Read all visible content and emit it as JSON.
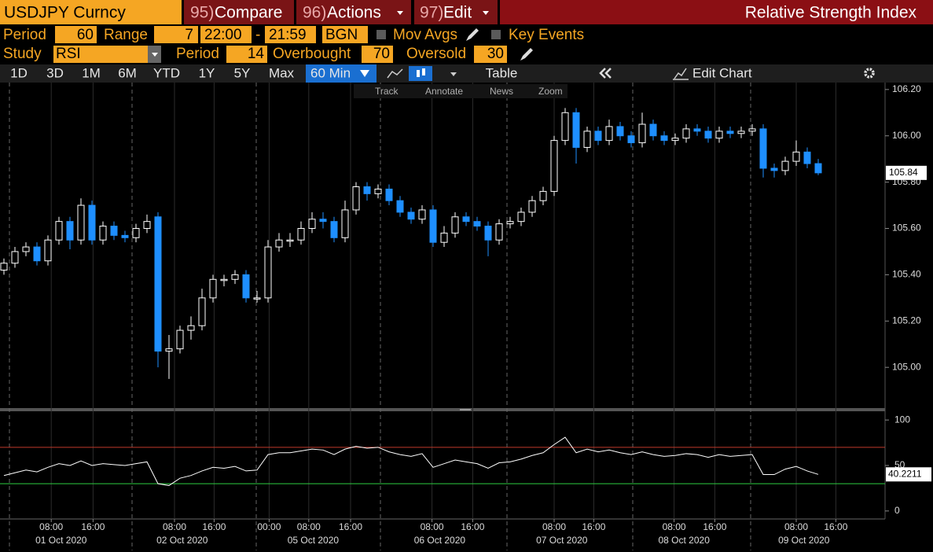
{
  "header": {
    "security": "USDJPY Curncy",
    "menus": [
      {
        "num": "95)",
        "label": "Compare"
      },
      {
        "num": "96)",
        "label": "Actions"
      },
      {
        "num": "97)",
        "label": "Edit"
      }
    ],
    "title": "Relative Strength Index"
  },
  "controls": {
    "period_label": "Period",
    "period": 60,
    "range_label": "Range",
    "range": 7,
    "start_time": "22:00",
    "range_sep": "-",
    "end_time": "21:59",
    "bgn": "BGN",
    "mov_avgs": "Mov Avgs",
    "key_events": "Key Events",
    "study_label": "Study",
    "study": "RSI",
    "study_period_label": "Period",
    "study_period": 14,
    "overbought_label": "Overbought",
    "overbought": 70,
    "oversold_label": "Oversold",
    "oversold": 30
  },
  "toolbar": {
    "timeframes": [
      "1D",
      "3D",
      "1M",
      "6M",
      "YTD",
      "1Y",
      "5Y",
      "Max"
    ],
    "interval": "60 Min",
    "table": "Table",
    "edit_chart": "Edit Chart"
  },
  "chart_tools": [
    "Track",
    "Annotate",
    "News",
    "Zoom"
  ],
  "chart_data": {
    "type": "candlestick",
    "up_color": "#ffffff",
    "down_color": "#1e8fff",
    "open": [
      105.42,
      105.45,
      105.5,
      105.52,
      105.46,
      105.55,
      105.63,
      105.55,
      105.7,
      105.55,
      105.61,
      105.57,
      105.56,
      105.6,
      105.65,
      105.07,
      105.08,
      105.16,
      105.18,
      105.3,
      105.38,
      105.38,
      105.4,
      105.3,
      105.3,
      105.52,
      105.55,
      105.55,
      105.6,
      105.64,
      105.63,
      105.56,
      105.68,
      105.78,
      105.75,
      105.77,
      105.72,
      105.67,
      105.64,
      105.68,
      105.54,
      105.58,
      105.65,
      105.63,
      105.61,
      105.55,
      105.62,
      105.63,
      105.67,
      105.72,
      105.76,
      105.98,
      106.1,
      105.95,
      106.02,
      105.98,
      106.04,
      106.0,
      105.97,
      106.05,
      106.0,
      105.98,
      105.99,
      106.03,
      106.02,
      105.99,
      106.02,
      106.01,
      106.02,
      106.03,
      105.86,
      105.85,
      105.89,
      105.93,
      105.88
    ],
    "high": [
      105.47,
      105.52,
      105.54,
      105.54,
      105.57,
      105.65,
      105.65,
      105.73,
      105.72,
      105.63,
      105.63,
      105.59,
      105.62,
      105.66,
      105.67,
      105.14,
      105.18,
      105.22,
      105.34,
      105.4,
      105.4,
      105.42,
      105.42,
      105.33,
      105.55,
      105.58,
      105.58,
      105.63,
      105.67,
      105.67,
      105.65,
      105.72,
      105.8,
      105.8,
      105.79,
      105.79,
      105.74,
      105.69,
      105.7,
      105.7,
      105.61,
      105.67,
      105.67,
      105.65,
      105.63,
      105.64,
      105.65,
      105.69,
      105.74,
      105.78,
      106.0,
      106.12,
      106.12,
      106.04,
      106.04,
      106.07,
      106.06,
      106.02,
      106.1,
      106.07,
      106.02,
      106.01,
      106.05,
      106.05,
      106.04,
      106.04,
      106.04,
      106.04,
      106.05,
      106.05,
      105.88,
      105.91,
      105.98,
      105.95,
      105.9
    ],
    "low": [
      105.4,
      105.43,
      105.48,
      105.44,
      105.44,
      105.53,
      105.51,
      105.53,
      105.53,
      105.53,
      105.55,
      105.54,
      105.54,
      105.58,
      105.0,
      104.95,
      105.06,
      105.12,
      105.16,
      105.28,
      105.35,
      105.36,
      105.28,
      105.28,
      105.28,
      105.5,
      105.52,
      105.53,
      105.58,
      105.6,
      105.54,
      105.54,
      105.66,
      105.72,
      105.73,
      105.7,
      105.65,
      105.62,
      105.62,
      105.52,
      105.52,
      105.56,
      105.61,
      105.59,
      105.48,
      105.53,
      105.6,
      105.61,
      105.65,
      105.7,
      105.74,
      105.96,
      105.88,
      105.93,
      105.96,
      105.96,
      105.98,
      105.95,
      105.95,
      105.98,
      105.96,
      105.96,
      105.97,
      106.0,
      105.97,
      105.97,
      105.99,
      105.99,
      106.0,
      105.82,
      105.82,
      105.83,
      105.87,
      105.86,
      105.83
    ],
    "close": [
      105.45,
      105.5,
      105.52,
      105.46,
      105.55,
      105.63,
      105.55,
      105.7,
      105.55,
      105.61,
      105.57,
      105.56,
      105.6,
      105.63,
      105.07,
      105.08,
      105.16,
      105.18,
      105.3,
      105.38,
      105.38,
      105.4,
      105.3,
      105.3,
      105.52,
      105.55,
      105.55,
      105.6,
      105.64,
      105.63,
      105.56,
      105.68,
      105.78,
      105.75,
      105.77,
      105.72,
      105.67,
      105.64,
      105.68,
      105.54,
      105.58,
      105.65,
      105.63,
      105.61,
      105.55,
      105.62,
      105.63,
      105.67,
      105.72,
      105.76,
      105.98,
      106.1,
      105.95,
      106.02,
      105.98,
      106.04,
      106.0,
      105.97,
      106.05,
      106.0,
      105.98,
      105.99,
      106.03,
      106.02,
      105.99,
      106.02,
      106.01,
      106.02,
      106.03,
      105.86,
      105.85,
      105.89,
      105.93,
      105.88,
      105.84
    ],
    "ylim": [
      104.824,
      106.23
    ],
    "yticks": [
      {
        "value": 105.0,
        "label": "105.00"
      },
      {
        "value": 105.2,
        "label": "105.20"
      },
      {
        "value": 105.4,
        "label": "105.40"
      },
      {
        "value": 105.6,
        "label": "105.60"
      },
      {
        "value": 105.8,
        "label": "105.80"
      },
      {
        "value": 106.0,
        "label": "106.00"
      },
      {
        "value": 106.2,
        "label": "106.20"
      }
    ],
    "xlim": [
      -0.36,
      80
    ],
    "xticks": [
      {
        "value": 4.3,
        "label": "08:00"
      },
      {
        "value": 8.1,
        "label": "16:00"
      },
      {
        "value": 15.5,
        "label": "08:00"
      },
      {
        "value": 19.1,
        "label": "16:00"
      },
      {
        "value": 24.1,
        "label": "00:00"
      },
      {
        "value": 27.7,
        "label": "08:00"
      },
      {
        "value": 31.5,
        "label": "16:00"
      },
      {
        "value": 38.9,
        "label": "08:00"
      },
      {
        "value": 42.6,
        "label": "16:00"
      },
      {
        "value": 50,
        "label": "08:00"
      },
      {
        "value": 53.6,
        "label": "16:00"
      },
      {
        "value": 60.9,
        "label": "08:00"
      },
      {
        "value": 64.6,
        "label": "16:00"
      },
      {
        "value": 72,
        "label": "08:00"
      },
      {
        "value": 75.6,
        "label": "16:00"
      }
    ],
    "day_labels": [
      {
        "value": 5.2,
        "label": "01 Oct 2020"
      },
      {
        "value": 16.2,
        "label": "02 Oct 2020"
      },
      {
        "value": 28.1,
        "label": "05 Oct 2020"
      },
      {
        "value": 39.6,
        "label": "06 Oct 2020"
      },
      {
        "value": 50.7,
        "label": "07 Oct 2020"
      },
      {
        "value": 61.8,
        "label": "08 Oct 2020"
      },
      {
        "value": 72.7,
        "label": "09 Oct 2020"
      }
    ],
    "rsi": {
      "color": "#ffffff",
      "overbought_color": "#c0392b",
      "oversold_color": "#2ecc40",
      "ylim": [
        -8.8,
        107.9
      ],
      "yticks": [
        0,
        50,
        100
      ],
      "values": [
        39,
        42,
        45,
        43,
        48,
        52,
        50,
        55,
        50,
        52,
        51,
        50,
        52,
        54,
        30,
        28,
        36,
        39,
        44,
        48,
        47,
        49,
        44,
        45,
        62,
        64,
        64,
        66,
        68,
        67,
        62,
        68,
        71,
        69,
        70,
        65,
        62,
        60,
        63,
        48,
        52,
        56,
        54,
        52,
        47,
        53,
        54,
        57,
        61,
        64,
        73,
        81,
        64,
        68,
        65,
        67,
        64,
        62,
        65,
        62,
        60,
        61,
        63,
        62,
        59,
        62,
        60,
        61,
        62,
        40,
        40,
        46,
        49,
        44,
        40.2211
      ]
    }
  }
}
